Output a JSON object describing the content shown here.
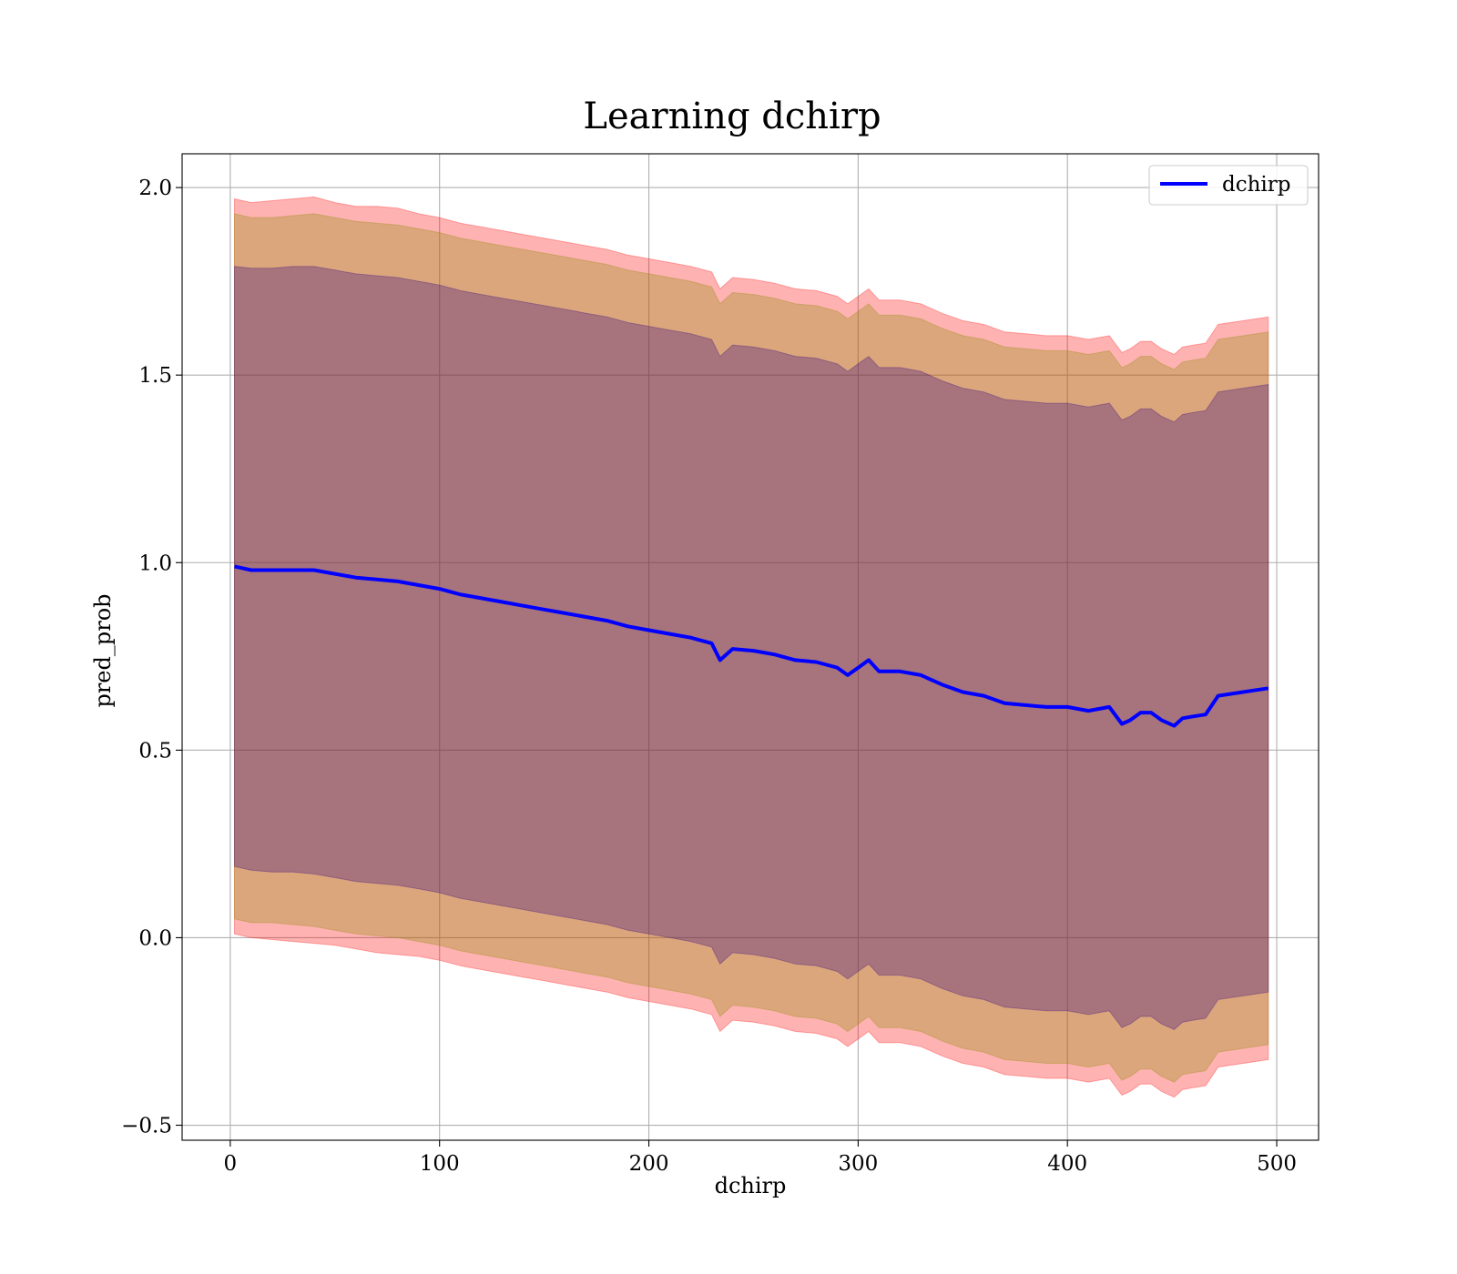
{
  "chart_data": {
    "type": "line",
    "title": "Learning dchirp",
    "xlabel": "dchirp",
    "ylabel": "pred_prob",
    "xlim": [
      -23,
      520
    ],
    "ylim": [
      -0.54,
      2.09
    ],
    "xticks": [
      0,
      100,
      200,
      300,
      400,
      500
    ],
    "yticks": [
      -0.5,
      0.0,
      0.5,
      1.0,
      1.5,
      2.0
    ],
    "xtick_labels": [
      "0",
      "100",
      "200",
      "300",
      "400",
      "500"
    ],
    "ytick_labels": [
      "−0.5",
      "0.0",
      "0.5",
      "1.0",
      "1.5",
      "2.0"
    ],
    "grid": true,
    "legend_position": "top-right",
    "legend": [
      "dchirp"
    ],
    "colors": {
      "line": "#0000ff",
      "band_outer": "#ff0000",
      "band_mid": "#8c8c00",
      "band_inner": "#300080"
    },
    "x": [
      2,
      10,
      20,
      30,
      40,
      50,
      60,
      70,
      80,
      90,
      100,
      110,
      120,
      130,
      140,
      150,
      160,
      170,
      180,
      190,
      200,
      210,
      220,
      230,
      234,
      240,
      250,
      260,
      270,
      280,
      290,
      295,
      300,
      305,
      310,
      320,
      330,
      340,
      350,
      360,
      370,
      380,
      390,
      400,
      410,
      420,
      426,
      430,
      435,
      440,
      445,
      451,
      455,
      460,
      466,
      472,
      496
    ],
    "series": [
      {
        "name": "dchirp",
        "values": [
          0.99,
          0.98,
          0.98,
          0.98,
          0.98,
          0.97,
          0.96,
          0.955,
          0.95,
          0.94,
          0.93,
          0.915,
          0.905,
          0.895,
          0.885,
          0.875,
          0.865,
          0.855,
          0.845,
          0.83,
          0.82,
          0.81,
          0.8,
          0.785,
          0.74,
          0.77,
          0.765,
          0.755,
          0.74,
          0.735,
          0.72,
          0.7,
          0.72,
          0.74,
          0.71,
          0.71,
          0.7,
          0.675,
          0.655,
          0.645,
          0.625,
          0.62,
          0.615,
          0.615,
          0.605,
          0.615,
          0.57,
          0.58,
          0.6,
          0.6,
          0.58,
          0.565,
          0.585,
          0.59,
          0.595,
          0.645,
          0.665
        ]
      }
    ],
    "bands": [
      {
        "lower": [
          0.01,
          0.0,
          -0.005,
          -0.01,
          -0.015,
          -0.02,
          -0.03,
          -0.04,
          -0.045,
          -0.05,
          -0.06,
          -0.075,
          -0.085,
          -0.095,
          -0.105,
          -0.115,
          -0.125,
          -0.135,
          -0.145,
          -0.16,
          -0.17,
          -0.18,
          -0.19,
          -0.205,
          -0.25,
          -0.22,
          -0.225,
          -0.235,
          -0.25,
          -0.255,
          -0.27,
          -0.29,
          -0.27,
          -0.25,
          -0.28,
          -0.28,
          -0.29,
          -0.315,
          -0.335,
          -0.345,
          -0.365,
          -0.37,
          -0.375,
          -0.375,
          -0.385,
          -0.375,
          -0.42,
          -0.41,
          -0.39,
          -0.39,
          -0.41,
          -0.425,
          -0.405,
          -0.4,
          -0.395,
          -0.345,
          -0.325
        ],
        "upper": [
          1.97,
          1.96,
          1.965,
          1.97,
          1.975,
          1.96,
          1.95,
          1.95,
          1.945,
          1.93,
          1.92,
          1.905,
          1.895,
          1.885,
          1.875,
          1.865,
          1.855,
          1.845,
          1.835,
          1.82,
          1.81,
          1.8,
          1.79,
          1.775,
          1.73,
          1.76,
          1.755,
          1.745,
          1.73,
          1.725,
          1.71,
          1.69,
          1.71,
          1.73,
          1.7,
          1.7,
          1.69,
          1.665,
          1.645,
          1.635,
          1.615,
          1.61,
          1.605,
          1.605,
          1.595,
          1.605,
          1.56,
          1.57,
          1.59,
          1.59,
          1.57,
          1.555,
          1.575,
          1.58,
          1.585,
          1.635,
          1.655
        ]
      },
      {
        "lower": [
          0.05,
          0.04,
          0.04,
          0.035,
          0.03,
          0.02,
          0.01,
          0.005,
          0.0,
          -0.01,
          -0.02,
          -0.035,
          -0.045,
          -0.055,
          -0.065,
          -0.075,
          -0.085,
          -0.095,
          -0.105,
          -0.12,
          -0.13,
          -0.14,
          -0.15,
          -0.165,
          -0.21,
          -0.18,
          -0.185,
          -0.195,
          -0.21,
          -0.215,
          -0.23,
          -0.25,
          -0.23,
          -0.21,
          -0.24,
          -0.24,
          -0.25,
          -0.275,
          -0.295,
          -0.305,
          -0.325,
          -0.33,
          -0.335,
          -0.335,
          -0.345,
          -0.335,
          -0.38,
          -0.37,
          -0.35,
          -0.35,
          -0.37,
          -0.385,
          -0.365,
          -0.36,
          -0.355,
          -0.305,
          -0.285
        ],
        "upper": [
          1.93,
          1.92,
          1.92,
          1.925,
          1.93,
          1.92,
          1.91,
          1.905,
          1.9,
          1.89,
          1.88,
          1.865,
          1.855,
          1.845,
          1.835,
          1.825,
          1.815,
          1.805,
          1.795,
          1.78,
          1.77,
          1.76,
          1.75,
          1.735,
          1.69,
          1.72,
          1.715,
          1.705,
          1.69,
          1.685,
          1.67,
          1.65,
          1.67,
          1.69,
          1.66,
          1.66,
          1.65,
          1.625,
          1.605,
          1.595,
          1.575,
          1.57,
          1.565,
          1.565,
          1.555,
          1.565,
          1.52,
          1.53,
          1.55,
          1.55,
          1.53,
          1.515,
          1.535,
          1.54,
          1.545,
          1.595,
          1.615
        ]
      },
      {
        "lower": [
          0.19,
          0.18,
          0.175,
          0.175,
          0.17,
          0.16,
          0.15,
          0.145,
          0.14,
          0.13,
          0.12,
          0.105,
          0.095,
          0.085,
          0.075,
          0.065,
          0.055,
          0.045,
          0.035,
          0.02,
          0.01,
          0.0,
          -0.01,
          -0.025,
          -0.07,
          -0.04,
          -0.045,
          -0.055,
          -0.07,
          -0.075,
          -0.09,
          -0.11,
          -0.09,
          -0.07,
          -0.1,
          -0.1,
          -0.11,
          -0.135,
          -0.155,
          -0.165,
          -0.185,
          -0.19,
          -0.195,
          -0.195,
          -0.205,
          -0.195,
          -0.24,
          -0.23,
          -0.21,
          -0.21,
          -0.23,
          -0.245,
          -0.225,
          -0.22,
          -0.215,
          -0.165,
          -0.145
        ],
        "upper": [
          1.79,
          1.785,
          1.785,
          1.79,
          1.79,
          1.78,
          1.77,
          1.765,
          1.76,
          1.75,
          1.74,
          1.725,
          1.715,
          1.705,
          1.695,
          1.685,
          1.675,
          1.665,
          1.655,
          1.64,
          1.63,
          1.62,
          1.61,
          1.595,
          1.55,
          1.58,
          1.575,
          1.565,
          1.55,
          1.545,
          1.53,
          1.51,
          1.53,
          1.55,
          1.52,
          1.52,
          1.51,
          1.485,
          1.465,
          1.455,
          1.435,
          1.43,
          1.425,
          1.425,
          1.415,
          1.425,
          1.38,
          1.39,
          1.41,
          1.41,
          1.39,
          1.375,
          1.395,
          1.4,
          1.405,
          1.455,
          1.475
        ]
      }
    ]
  }
}
